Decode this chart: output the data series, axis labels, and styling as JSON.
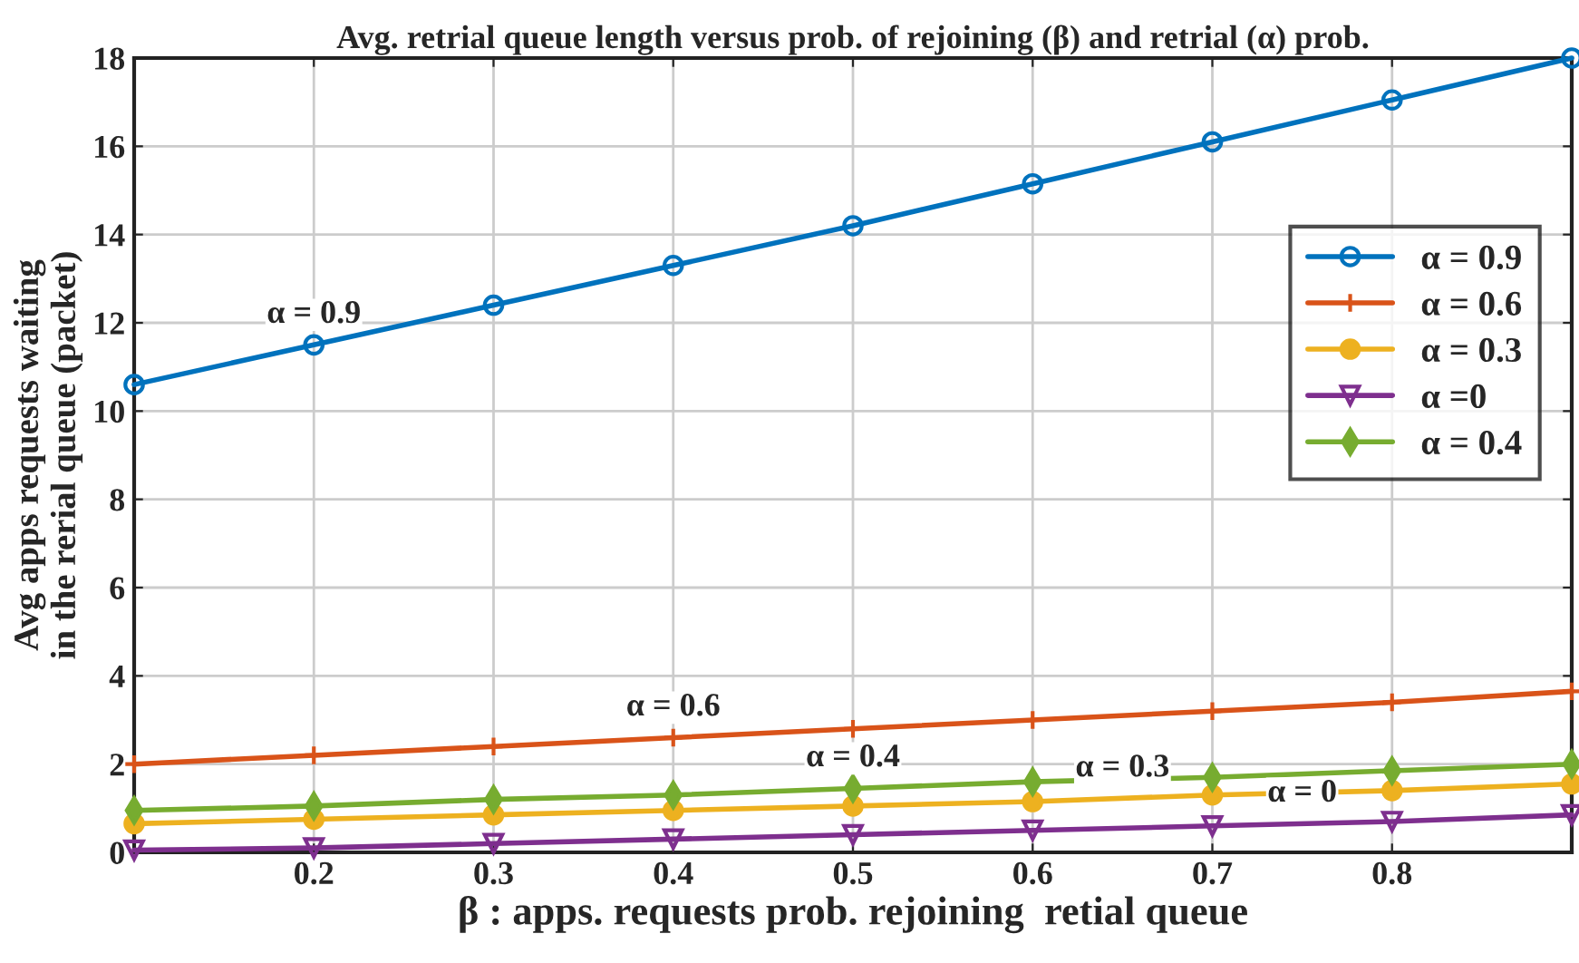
{
  "chart_data": {
    "type": "line",
    "title": "Avg. retrial queue length versus prob. of rejoining (β) and retrial (α) prob.",
    "xlabel": "β : apps. requests prob. rejoining  retial queue",
    "ylabel": "Avg apps requests waiting\nin the rerial queue (packet)",
    "x": [
      0.1,
      0.2,
      0.3,
      0.4,
      0.5,
      0.6,
      0.7,
      0.8,
      0.9
    ],
    "series": [
      {
        "name": "α = 0.9",
        "color": "#0072bd",
        "marker": "circle",
        "values": [
          10.6,
          11.5,
          12.4,
          13.3,
          14.2,
          15.15,
          16.1,
          17.05,
          18.0
        ]
      },
      {
        "name": "α = 0.6",
        "color": "#d95319",
        "marker": "cross",
        "values": [
          2.0,
          2.2,
          2.4,
          2.6,
          2.8,
          3.0,
          3.2,
          3.4,
          3.65
        ]
      },
      {
        "name": "α = 0.3",
        "color": "#edb120",
        "marker": "circle",
        "values": [
          0.65,
          0.75,
          0.85,
          0.95,
          1.05,
          1.15,
          1.3,
          1.4,
          1.55
        ]
      },
      {
        "name": "α =0",
        "color": "#7e2f8e",
        "marker": "triangle",
        "values": [
          0.05,
          0.1,
          0.2,
          0.3,
          0.4,
          0.5,
          0.6,
          0.7,
          0.85
        ]
      },
      {
        "name": "α = 0.4",
        "color": "#77ac30",
        "marker": "diamond",
        "values": [
          0.95,
          1.05,
          1.2,
          1.3,
          1.45,
          1.6,
          1.7,
          1.85,
          2.0
        ]
      }
    ],
    "annotations": [
      {
        "text": "α = 0.9",
        "x": 0.2,
        "y": 11.5
      },
      {
        "text": "α = 0.6",
        "x": 0.4,
        "y": 2.6
      },
      {
        "text": "α = 0.4",
        "x": 0.5,
        "y": 1.45
      },
      {
        "text": "α = 0.3",
        "x": 0.65,
        "y": 1.22
      },
      {
        "text": "α = 0",
        "x": 0.75,
        "y": 0.65
      }
    ],
    "xlim": [
      0.1,
      0.9
    ],
    "xticks": [
      0.2,
      0.3,
      0.4,
      0.5,
      0.6,
      0.7,
      0.8
    ],
    "ylim": [
      0,
      18
    ],
    "yticks": [
      0,
      2,
      4,
      6,
      8,
      10,
      12,
      14,
      16,
      18
    ],
    "grid": true,
    "legend": "top right",
    "line_style": "solid"
  }
}
